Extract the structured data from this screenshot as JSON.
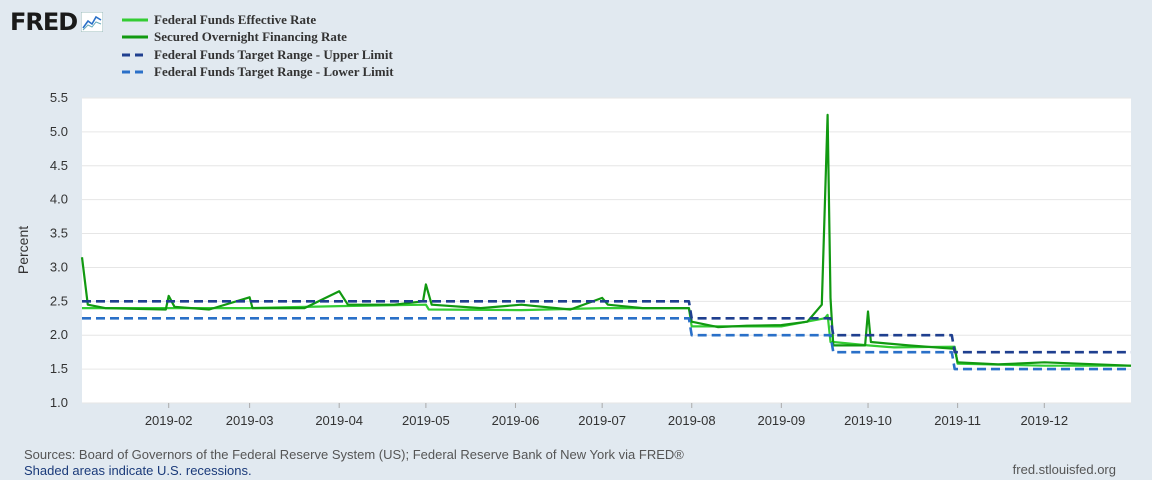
{
  "logo": {
    "text": "FRED",
    "icon": "fred-chart-icon"
  },
  "chart_data": {
    "type": "line",
    "title": "",
    "xlabel": "",
    "ylabel": "Percent",
    "ylim": [
      1.0,
      5.5
    ],
    "yticks": [
      1.0,
      1.5,
      2.0,
      2.5,
      3.0,
      3.5,
      4.0,
      4.5,
      5.0,
      5.5
    ],
    "ytick_labels": [
      "1.0",
      "1.5",
      "2.0",
      "2.5",
      "3.0",
      "3.5",
      "4.0",
      "4.5",
      "5.0",
      "5.5"
    ],
    "xlim": [
      "2019-01-02",
      "2019-12-31"
    ],
    "xticks": [
      "2019-02-01",
      "2019-03-01",
      "2019-04-01",
      "2019-05-01",
      "2019-06-01",
      "2019-07-01",
      "2019-08-01",
      "2019-09-01",
      "2019-10-01",
      "2019-11-01",
      "2019-12-01"
    ],
    "xtick_labels": [
      "2019-02",
      "2019-03",
      "2019-04",
      "2019-05",
      "2019-06",
      "2019-07",
      "2019-08",
      "2019-09",
      "2019-10",
      "2019-11",
      "2019-12"
    ],
    "grid": "horizontal",
    "legend_position": "top-left",
    "series": [
      {
        "name": "Federal Funds Effective Rate",
        "color": "#33cc33",
        "style": "solid",
        "points": [
          [
            "2019-01-02",
            2.4
          ],
          [
            "2019-01-31",
            2.4
          ],
          [
            "2019-02-01",
            2.4
          ],
          [
            "2019-03-01",
            2.4
          ],
          [
            "2019-04-01",
            2.43
          ],
          [
            "2019-05-01",
            2.45
          ],
          [
            "2019-05-02",
            2.38
          ],
          [
            "2019-06-03",
            2.37
          ],
          [
            "2019-07-01",
            2.4
          ],
          [
            "2019-07-31",
            2.4
          ],
          [
            "2019-08-01",
            2.13
          ],
          [
            "2019-09-01",
            2.13
          ],
          [
            "2019-09-16",
            2.25
          ],
          [
            "2019-09-17",
            2.3
          ],
          [
            "2019-09-18",
            1.9
          ],
          [
            "2019-09-19",
            1.9
          ],
          [
            "2019-10-01",
            1.85
          ],
          [
            "2019-10-10",
            1.82
          ],
          [
            "2019-10-31",
            1.83
          ],
          [
            "2019-11-01",
            1.58
          ],
          [
            "2019-12-01",
            1.55
          ],
          [
            "2019-12-31",
            1.55
          ]
        ]
      },
      {
        "name": "Secured Overnight Financing Rate",
        "color": "#119911",
        "style": "solid",
        "points": [
          [
            "2019-01-02",
            3.15
          ],
          [
            "2019-01-04",
            2.45
          ],
          [
            "2019-01-10",
            2.4
          ],
          [
            "2019-01-31",
            2.38
          ],
          [
            "2019-02-01",
            2.58
          ],
          [
            "2019-02-03",
            2.42
          ],
          [
            "2019-02-15",
            2.38
          ],
          [
            "2019-03-01",
            2.56
          ],
          [
            "2019-03-02",
            2.4
          ],
          [
            "2019-03-20",
            2.4
          ],
          [
            "2019-04-01",
            2.65
          ],
          [
            "2019-04-04",
            2.45
          ],
          [
            "2019-04-20",
            2.45
          ],
          [
            "2019-04-30",
            2.5
          ],
          [
            "2019-05-01",
            2.75
          ],
          [
            "2019-05-03",
            2.45
          ],
          [
            "2019-05-20",
            2.4
          ],
          [
            "2019-06-03",
            2.45
          ],
          [
            "2019-06-20",
            2.38
          ],
          [
            "2019-07-01",
            2.55
          ],
          [
            "2019-07-03",
            2.45
          ],
          [
            "2019-07-15",
            2.4
          ],
          [
            "2019-07-31",
            2.4
          ],
          [
            "2019-08-01",
            2.2
          ],
          [
            "2019-08-10",
            2.12
          ],
          [
            "2019-08-20",
            2.14
          ],
          [
            "2019-09-01",
            2.15
          ],
          [
            "2019-09-10",
            2.2
          ],
          [
            "2019-09-15",
            2.45
          ],
          [
            "2019-09-17",
            5.25
          ],
          [
            "2019-09-18",
            2.55
          ],
          [
            "2019-09-19",
            1.85
          ],
          [
            "2019-09-30",
            1.85
          ],
          [
            "2019-10-01",
            2.35
          ],
          [
            "2019-10-02",
            1.9
          ],
          [
            "2019-10-15",
            1.85
          ],
          [
            "2019-10-31",
            1.8
          ],
          [
            "2019-11-01",
            1.6
          ],
          [
            "2019-11-15",
            1.57
          ],
          [
            "2019-12-01",
            1.6
          ],
          [
            "2019-12-31",
            1.55
          ]
        ]
      },
      {
        "name": "Federal Funds Target Range - Upper Limit",
        "color": "#1f3f8f",
        "style": "dashed",
        "points": [
          [
            "2019-01-02",
            2.5
          ],
          [
            "2019-07-31",
            2.5
          ],
          [
            "2019-08-01",
            2.25
          ],
          [
            "2019-09-18",
            2.25
          ],
          [
            "2019-09-19",
            2.0
          ],
          [
            "2019-10-30",
            2.0
          ],
          [
            "2019-10-31",
            1.75
          ],
          [
            "2019-12-31",
            1.75
          ]
        ]
      },
      {
        "name": "Federal Funds Target Range - Lower Limit",
        "color": "#2a70c8",
        "style": "dashed",
        "points": [
          [
            "2019-01-02",
            2.25
          ],
          [
            "2019-07-31",
            2.25
          ],
          [
            "2019-08-01",
            2.0
          ],
          [
            "2019-09-18",
            2.0
          ],
          [
            "2019-09-19",
            1.75
          ],
          [
            "2019-10-30",
            1.75
          ],
          [
            "2019-10-31",
            1.5
          ],
          [
            "2019-12-31",
            1.5
          ]
        ]
      }
    ]
  },
  "footer": {
    "sources": "Sources: Board of Governors of the Federal Reserve System (US); Federal Reserve Bank of New York via FRED®",
    "recession_note": "Shaded areas indicate U.S. recessions.",
    "site": "fred.stlouisfed.org"
  }
}
